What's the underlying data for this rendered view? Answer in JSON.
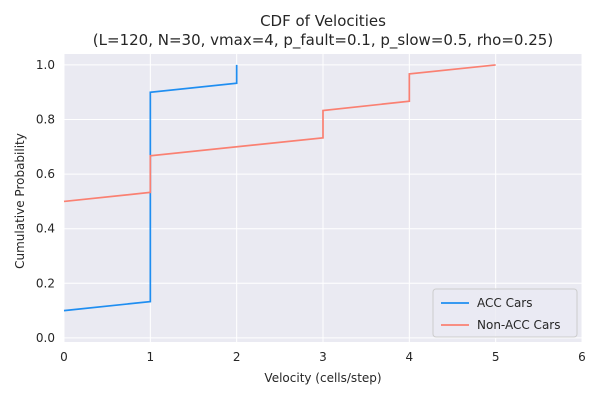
{
  "chart_data": {
    "type": "line",
    "line_style": "step",
    "title_line1": "CDF of Velocities",
    "title_line2": "(L=120, N=30, vmax=4, p_fault=0.1, p_slow=0.5, rho=0.25)",
    "xlabel": "Velocity (cells/step)",
    "ylabel": "Cumulative Probability",
    "xlim": [
      0,
      6
    ],
    "ylim": [
      -0.015,
      1.04
    ],
    "x_ticks": [
      0,
      1,
      2,
      3,
      4,
      5,
      6
    ],
    "x_tick_labels": [
      "0",
      "1",
      "2",
      "3",
      "4",
      "5",
      "6"
    ],
    "y_ticks": [
      0.0,
      0.2,
      0.4,
      0.6,
      0.8,
      1.0
    ],
    "y_tick_labels": [
      "0.0",
      "0.2",
      "0.4",
      "0.6",
      "0.8",
      "1.0"
    ],
    "grid": true,
    "legend_position": "lower-right",
    "colors": {
      "background": "#eaeaf2",
      "grid": "#ffffff",
      "acc": "#1f8ef1",
      "non_acc": "#fa8072"
    },
    "series": [
      {
        "name": "ACC Cars",
        "points": [
          [
            0,
            0.1
          ],
          [
            1,
            0.133
          ],
          [
            1,
            0.9
          ],
          [
            2,
            0.933
          ],
          [
            2,
            1.0
          ]
        ]
      },
      {
        "name": "Non-ACC Cars",
        "points": [
          [
            0,
            0.5
          ],
          [
            1,
            0.533
          ],
          [
            1,
            0.667
          ],
          [
            3,
            0.733
          ],
          [
            3,
            0.833
          ],
          [
            4,
            0.867
          ],
          [
            4,
            0.967
          ],
          [
            5,
            1.0
          ]
        ]
      }
    ]
  }
}
